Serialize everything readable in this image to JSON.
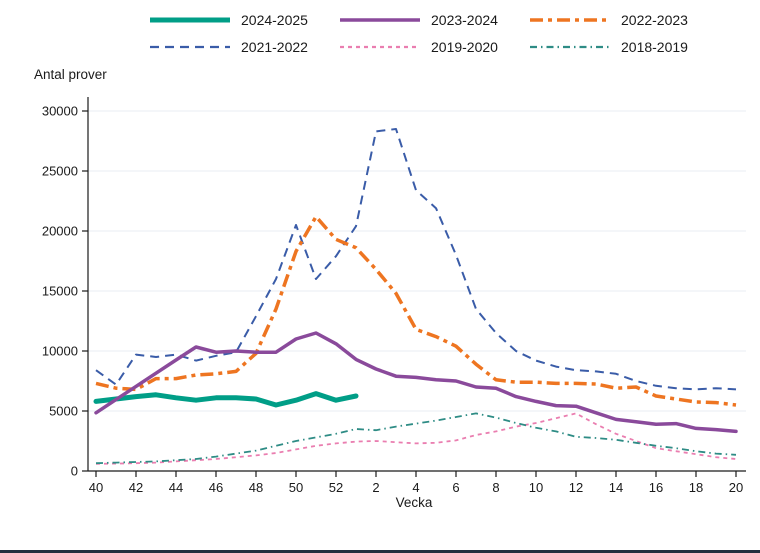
{
  "page": {
    "background_color": "#ffffff",
    "footer_bar_color": "#252e3f",
    "grid_color": "#e8eef3",
    "axis_color": "#1a1a1a",
    "text_color": "#1a1a1a"
  },
  "chart_data": {
    "type": "line",
    "title": "Antal prover",
    "xlabel": "Vecka",
    "ylabel": "Antal prover",
    "ylim": [
      0,
      30000
    ],
    "y_ticks": [
      0,
      5000,
      10000,
      15000,
      20000,
      25000,
      30000
    ],
    "grid": "horizontal-only",
    "legend_position": "top",
    "x_categories": [
      "40",
      "41",
      "42",
      "43",
      "44",
      "45",
      "46",
      "47",
      "48",
      "49",
      "50",
      "51",
      "52",
      "1",
      "2",
      "3",
      "4",
      "5",
      "6",
      "7",
      "8",
      "9",
      "10",
      "11",
      "12",
      "13",
      "14",
      "15",
      "16",
      "17",
      "18",
      "19",
      "20"
    ],
    "x_tick_labels": [
      "40",
      "42",
      "44",
      "46",
      "48",
      "50",
      "52",
      "2",
      "4",
      "6",
      "8",
      "10",
      "12",
      "14",
      "16",
      "18",
      "20"
    ],
    "series": [
      {
        "name": "2024-2025",
        "color": "#009e87",
        "style": "solid",
        "width": 5,
        "zorder": 5,
        "values": [
          5800,
          6000,
          6200,
          6350,
          6100,
          5900,
          6100,
          6100,
          6000,
          5500,
          5900,
          6450,
          5900,
          6250,
          null,
          null,
          null,
          null,
          null,
          null,
          null,
          null,
          null,
          null,
          null,
          null,
          null,
          null,
          null,
          null,
          null,
          null,
          null
        ]
      },
      {
        "name": "2023-2024",
        "color": "#8a4a9b",
        "style": "solid",
        "width": 3.5,
        "zorder": 6,
        "values": [
          4850,
          5950,
          7050,
          8150,
          9250,
          10330,
          9900,
          10000,
          9900,
          9900,
          11000,
          11500,
          10600,
          9300,
          8500,
          7900,
          7800,
          7600,
          7500,
          7000,
          6900,
          6200,
          5800,
          5450,
          5400,
          4850,
          4300,
          4100,
          3900,
          3950,
          3550,
          3450,
          3300
        ]
      },
      {
        "name": "2022-2023",
        "color": "#ee7521",
        "style": "dash-dot",
        "dash": "13 5 4 5",
        "width": 3.5,
        "zorder": 4,
        "values": [
          7300,
          6900,
          6800,
          7700,
          7700,
          8000,
          8100,
          8300,
          9800,
          13500,
          18300,
          21200,
          19300,
          18600,
          16800,
          14800,
          11800,
          11200,
          10400,
          8900,
          7600,
          7400,
          7400,
          7300,
          7300,
          7250,
          6900,
          7000,
          6250,
          6000,
          5750,
          5700,
          5500
        ]
      },
      {
        "name": "2021-2022",
        "color": "#3a5ca8",
        "style": "dashed",
        "dash": "9 6",
        "width": 2,
        "zorder": 3,
        "values": [
          8400,
          7200,
          9700,
          9500,
          9700,
          9200,
          9600,
          9900,
          12900,
          16000,
          20500,
          16000,
          17900,
          20400,
          28300,
          28500,
          23400,
          21900,
          18000,
          13500,
          11500,
          10000,
          9200,
          8700,
          8400,
          8300,
          8100,
          7500,
          7100,
          6900,
          6800,
          6900,
          6800
        ]
      },
      {
        "name": "2019-2020",
        "color": "#ea7eb0",
        "style": "short-dash",
        "dash": "4 4",
        "width": 1.8,
        "zorder": 1,
        "values": [
          600,
          620,
          650,
          700,
          800,
          900,
          1000,
          1150,
          1300,
          1500,
          1800,
          2100,
          2300,
          2450,
          2500,
          2400,
          2300,
          2350,
          2550,
          3000,
          3300,
          3700,
          4000,
          4400,
          4800,
          3900,
          3100,
          2500,
          1900,
          1650,
          1400,
          1150,
          1000
        ]
      },
      {
        "name": "2018-2019",
        "color": "#2e8c85",
        "style": "dash-dot",
        "dash": "7 4 1.5 4",
        "width": 1.8,
        "zorder": 2,
        "values": [
          650,
          700,
          750,
          800,
          900,
          1000,
          1200,
          1450,
          1700,
          2100,
          2500,
          2800,
          3100,
          3500,
          3400,
          3700,
          3950,
          4200,
          4500,
          4800,
          4450,
          4000,
          3600,
          3300,
          2850,
          2750,
          2600,
          2350,
          2100,
          1900,
          1650,
          1450,
          1350
        ]
      }
    ]
  }
}
